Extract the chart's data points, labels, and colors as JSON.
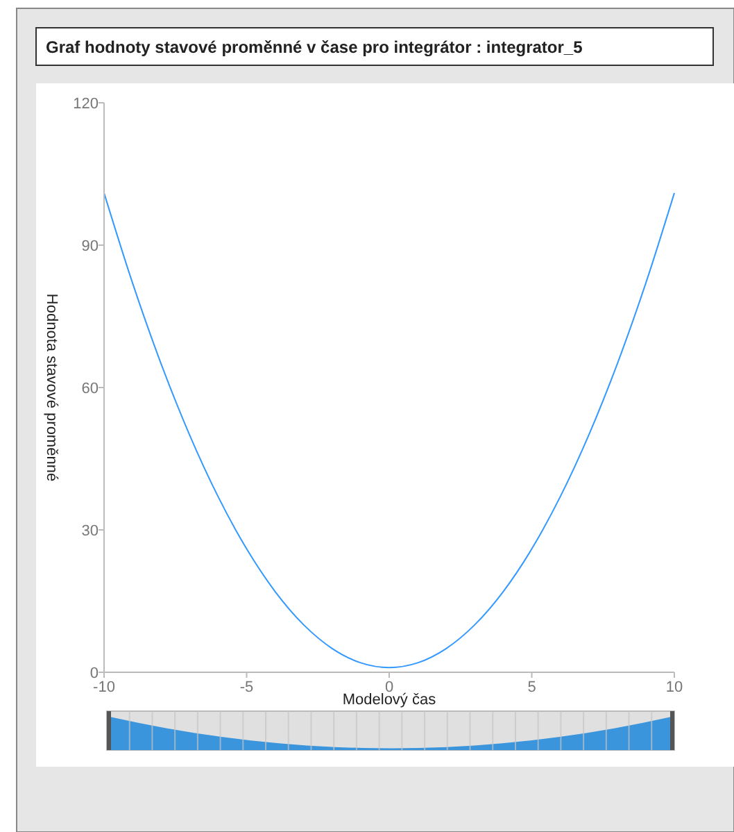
{
  "chart_data": {
    "type": "line",
    "title": "Graf hodnoty stavové proměnné v čase pro integrátor : integrator_5",
    "xlabel": "Modelový čas",
    "ylabel": "Hodnota stavové proměnné",
    "x": [
      -10,
      -9,
      -8,
      -7,
      -6,
      -5,
      -4,
      -3,
      -2,
      -1,
      0,
      1,
      2,
      3,
      4,
      5,
      6,
      7,
      8,
      9,
      10
    ],
    "series": [
      {
        "color": "#3399ff",
        "values": [
          101,
          82,
          65,
          50,
          37,
          26,
          17,
          10,
          5,
          2,
          1,
          2,
          5,
          10,
          17,
          26,
          37,
          50,
          65,
          82,
          101
        ]
      }
    ],
    "xlim": [
      -10,
      10
    ],
    "xticks": [
      -10,
      -5,
      0,
      5,
      10
    ],
    "ylim": [
      0,
      120
    ],
    "yticks": [
      0,
      30,
      60,
      90,
      120
    ],
    "grid": false,
    "marker": "none",
    "line_style": "solid"
  }
}
